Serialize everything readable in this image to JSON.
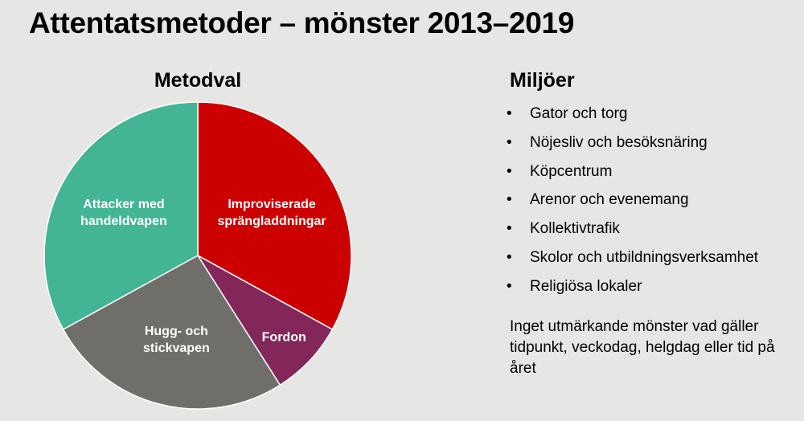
{
  "page": {
    "title": "Attentatsmetoder – mönster 2013–2019"
  },
  "chart_data": {
    "type": "pie",
    "title": "Metodval",
    "slices": [
      {
        "label": "Improviserade sprängladdningar",
        "lines": [
          "Improviserade",
          "sprängladdningar"
        ],
        "value": 33,
        "color": "#cc0000"
      },
      {
        "label": "Fordon",
        "lines": [
          "Fordon"
        ],
        "value": 8,
        "color": "#83275a"
      },
      {
        "label": "Hugg- och stickvapen",
        "lines": [
          "Hugg- och",
          "stickvapen"
        ],
        "value": 26,
        "color": "#6f6e68"
      },
      {
        "label": "Attacker med handeldvapen",
        "lines": [
          "Attacker med",
          "handeldvapen"
        ],
        "value": 33,
        "color": "#43b595"
      }
    ]
  },
  "environments": {
    "title": "Miljöer",
    "items": [
      "Gator och torg",
      "Nöjesliv och besöksnäring",
      "Köpcentrum",
      "Arenor och evenemang",
      "Kollektivtrafik",
      "Skolor och utbildningsverksamhet",
      "Religiösa lokaler"
    ],
    "note": "Inget utmärkande mönster vad gäller tidpunkt, veckodag, helgdag eller tid på året"
  }
}
